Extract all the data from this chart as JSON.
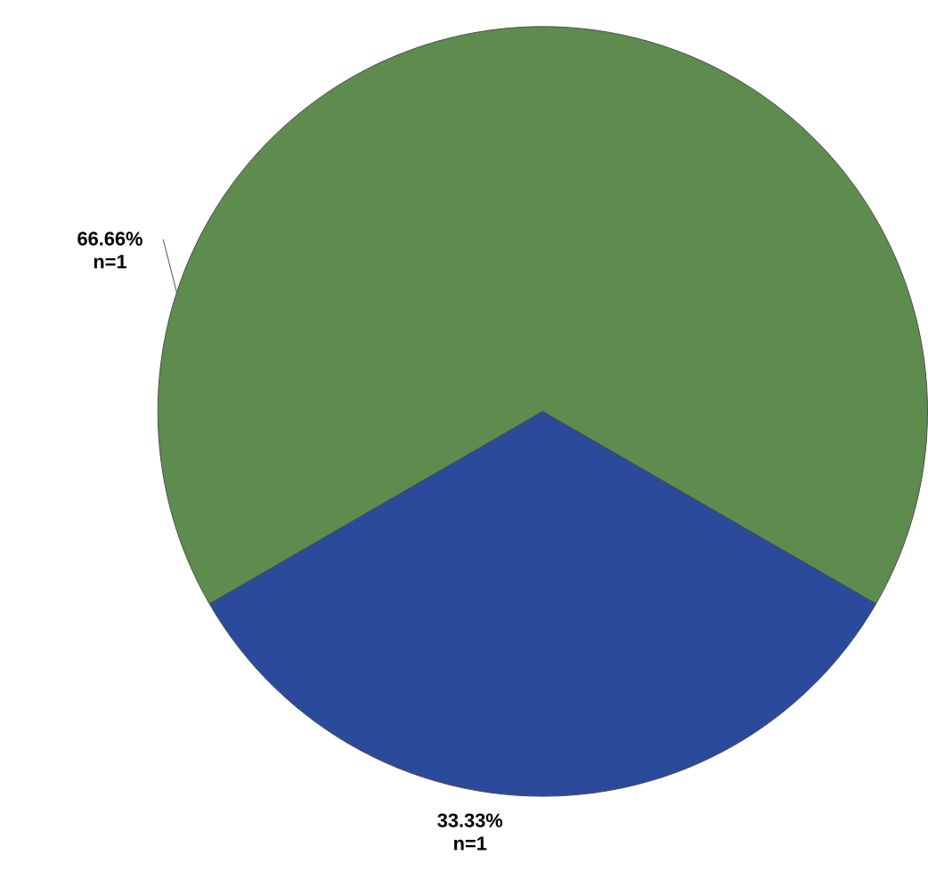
{
  "chart_data": {
    "type": "pie",
    "categories": [
      "n=1",
      "n=1"
    ],
    "values": [
      66.66,
      33.33
    ],
    "value_labels": [
      "66.66%",
      "33.33%"
    ],
    "colors": [
      "#5e8c4e",
      "#2b4a9c"
    ]
  }
}
